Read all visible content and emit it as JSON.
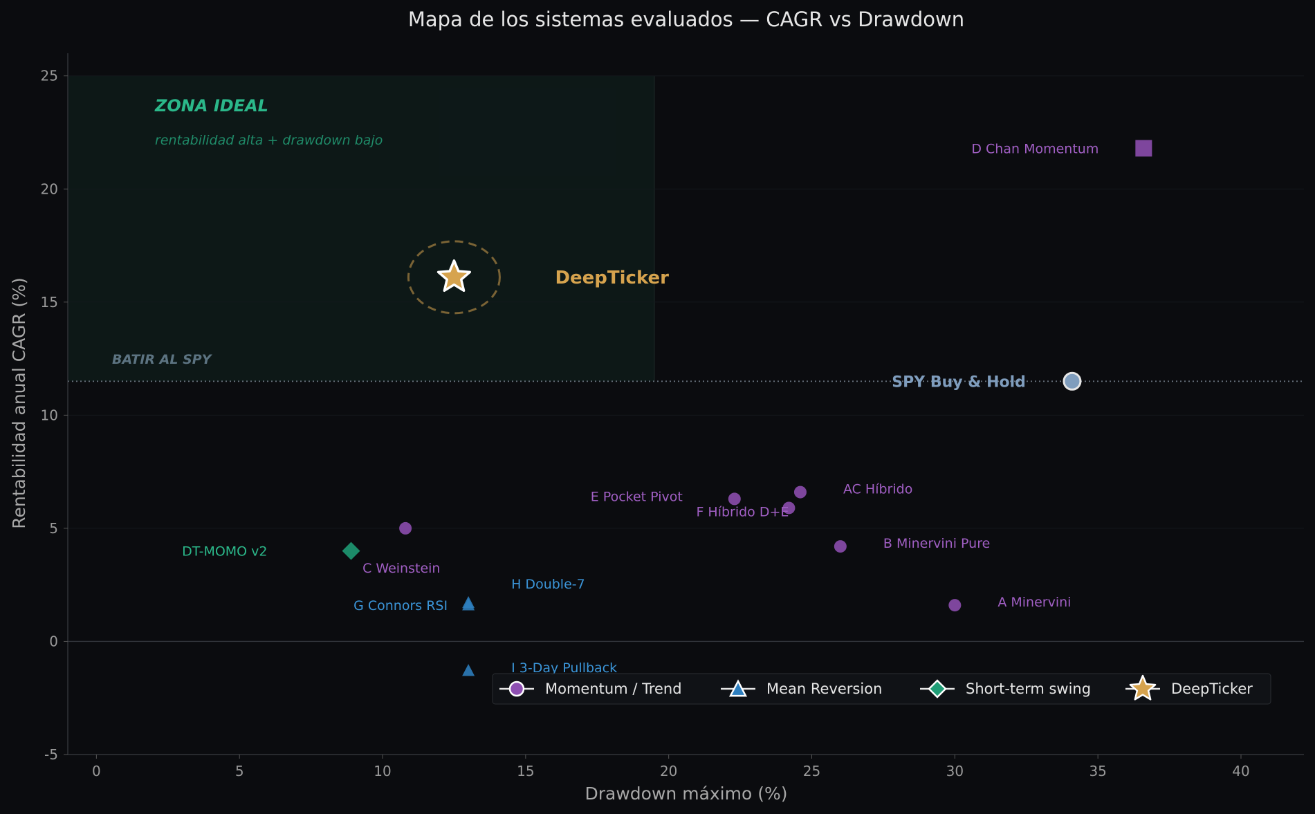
{
  "chart_data": {
    "type": "scatter",
    "title": "Mapa de los sistemas evaluados — CAGR vs Drawdown",
    "xlabel": "Drawdown máximo (%)",
    "ylabel": "Rentabilidad anual CAGR (%)",
    "xlim": [
      -1,
      42.2
    ],
    "ylim": [
      -5,
      26
    ],
    "xticks": [
      0,
      5,
      10,
      15,
      20,
      25,
      30,
      35,
      40
    ],
    "yticks": [
      -5,
      0,
      5,
      10,
      15,
      20,
      25
    ],
    "grid": true,
    "legend_position": "bottom-right",
    "annotations": {
      "zone_title": "ZONA IDEAL",
      "zone_subtitle": "rentabilidad alta + drawdown bajo",
      "benchmark_label": "BATIR AL SPY"
    },
    "colors": {
      "momentum": "#8e4fb2",
      "momentum_label": "#a15fc4",
      "mean_reversion": "#2e7fbf",
      "mean_reversion_label": "#3b95d8",
      "swing": "#1f9d76",
      "swing_label": "#2bb88a",
      "deepticker": "#d6a34e",
      "spy": "#7f9dbd",
      "zone": "#2bb88a"
    },
    "legend": [
      {
        "label": "Momentum / Trend",
        "marker": "circle",
        "group": "momentum"
      },
      {
        "label": "Mean Reversion",
        "marker": "triangle",
        "group": "mean_reversion"
      },
      {
        "label": "Short-term swing",
        "marker": "diamond",
        "group": "swing"
      },
      {
        "label": "DeepTicker",
        "marker": "star",
        "group": "deepticker"
      }
    ],
    "points": [
      {
        "label": "A Minervini",
        "x": 30.0,
        "y": 1.6,
        "group": "momentum",
        "marker": "circle",
        "label_side": "right"
      },
      {
        "label": "B Minervini Pure",
        "x": 26.0,
        "y": 4.2,
        "group": "momentum",
        "marker": "circle",
        "label_side": "right"
      },
      {
        "label": "C Weinstein",
        "x": 10.8,
        "y": 5.0,
        "group": "momentum",
        "marker": "circle",
        "label_side": "below"
      },
      {
        "label": "D Chan Momentum",
        "x": 36.6,
        "y": 21.8,
        "group": "momentum",
        "marker": "square",
        "label_side": "left"
      },
      {
        "label": "E Pocket Pivot",
        "x": 22.3,
        "y": 6.3,
        "group": "momentum",
        "marker": "circle",
        "label_side": "left"
      },
      {
        "label": "F Híbrido D+E",
        "x": 24.2,
        "y": 5.9,
        "group": "momentum",
        "marker": "circle",
        "label_side": "left"
      },
      {
        "label": "AC Híbrido",
        "x": 24.6,
        "y": 6.6,
        "group": "momentum",
        "marker": "circle",
        "label_side": "right"
      },
      {
        "label": "G Connors RSI",
        "x": 13.0,
        "y": 1.6,
        "group": "mean_reversion",
        "marker": "triangle",
        "label_side": "left"
      },
      {
        "label": "H Double-7",
        "x": 13.0,
        "y": 1.7,
        "group": "mean_reversion",
        "marker": "triangle",
        "label_side": "upper-right"
      },
      {
        "label": "I 3-Day Pullback",
        "x": 13.0,
        "y": -1.3,
        "group": "mean_reversion",
        "marker": "triangle",
        "label_side": "right"
      },
      {
        "label": "DT-MOMO v2",
        "x": 8.9,
        "y": 4.0,
        "group": "swing",
        "marker": "diamond",
        "label_side": "left"
      },
      {
        "label": "DeepTicker",
        "x": 12.5,
        "y": 16.1,
        "group": "deepticker",
        "marker": "star",
        "label_side": "right"
      },
      {
        "label": "SPY Buy & Hold",
        "x": 34.1,
        "y": 11.5,
        "group": "spy",
        "marker": "circle",
        "label_side": "left"
      }
    ],
    "benchmark_y": 11.5,
    "zone": {
      "x_to": 19.5,
      "y_from": 11.5,
      "y_to": 25
    }
  }
}
